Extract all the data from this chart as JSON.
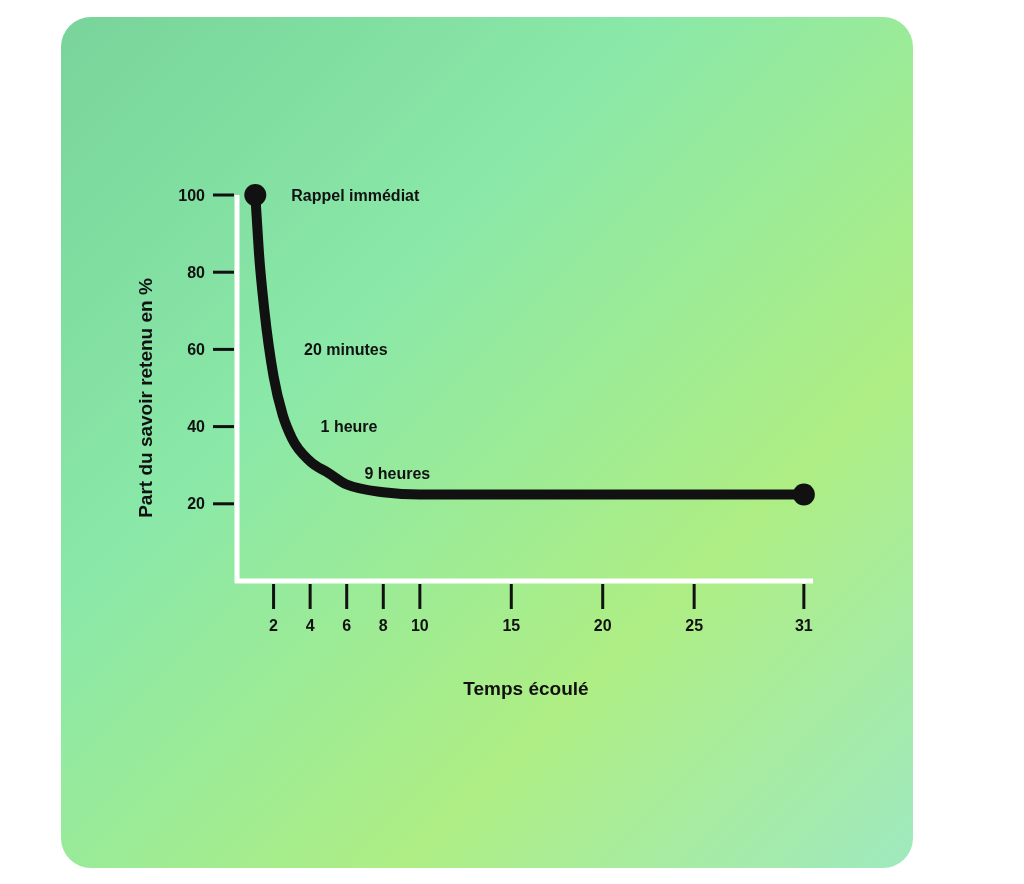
{
  "chart_data": {
    "type": "line",
    "xlabel": "Temps écoulé",
    "ylabel": "Part du savoir retenu en %",
    "xlim": [
      0,
      31.5
    ],
    "ylim": [
      0,
      100
    ],
    "xticks": [
      2,
      4,
      6,
      8,
      10,
      15,
      20,
      25,
      31
    ],
    "yticks": [
      20,
      40,
      60,
      80,
      100
    ],
    "grid": false,
    "series": [
      {
        "type": "line",
        "color": "#111111",
        "x": [
          1,
          1.2,
          1.5,
          2,
          2.5,
          3,
          4,
          5,
          6,
          8,
          10,
          15,
          20,
          25,
          31
        ],
        "values": [
          100,
          85,
          70,
          53,
          43,
          37,
          31,
          28,
          25,
          23,
          22.4,
          22.4,
          22.4,
          22.4,
          22.4
        ]
      },
      {
        "type": "scatter",
        "color": "#111111",
        "marker": "circle",
        "x": [
          1,
          31
        ],
        "values": [
          100,
          22.4
        ]
      }
    ],
    "annotations": [
      {
        "text": "Rappel immédiat",
        "x": 1,
        "y": 100
      },
      {
        "text": "20 minutes",
        "x": 1.7,
        "y": 60
      },
      {
        "text": "1 heure",
        "x": 2.6,
        "y": 40
      },
      {
        "text": "9 heures",
        "x": 5,
        "y": 28
      }
    ]
  }
}
